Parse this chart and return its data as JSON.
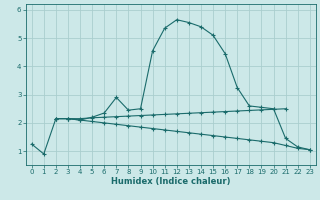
{
  "xlabel": "Humidex (Indice chaleur)",
  "background_color": "#cce8e8",
  "grid_color": "#aacece",
  "line_color": "#1a6b6b",
  "xlim": [
    -0.5,
    23.5
  ],
  "ylim": [
    0.5,
    6.2
  ],
  "xticks": [
    0,
    1,
    2,
    3,
    4,
    5,
    6,
    7,
    8,
    9,
    10,
    11,
    12,
    13,
    14,
    15,
    16,
    17,
    18,
    19,
    20,
    21,
    22,
    23
  ],
  "yticks": [
    1,
    2,
    3,
    4,
    5,
    6
  ],
  "curve1_x": [
    0,
    1,
    2,
    3,
    4,
    5,
    6,
    7,
    8,
    9,
    10,
    11,
    12,
    13,
    14,
    15,
    16,
    17,
    18,
    19,
    20,
    21,
    22,
    23
  ],
  "curve1_y": [
    1.25,
    0.9,
    2.15,
    2.15,
    2.1,
    2.2,
    2.35,
    2.9,
    2.45,
    2.5,
    4.55,
    5.35,
    5.65,
    5.55,
    5.4,
    5.1,
    4.45,
    3.25,
    2.6,
    2.55,
    2.5,
    1.45,
    1.15,
    1.05
  ],
  "curve2_x": [
    2,
    3,
    4,
    5,
    6,
    7,
    8,
    9,
    10,
    11,
    12,
    13,
    14,
    15,
    16,
    17,
    18,
    19,
    20,
    21
  ],
  "curve2_y": [
    2.15,
    2.15,
    2.15,
    2.18,
    2.2,
    2.22,
    2.24,
    2.26,
    2.28,
    2.3,
    2.32,
    2.34,
    2.36,
    2.38,
    2.4,
    2.42,
    2.44,
    2.46,
    2.48,
    2.5
  ],
  "curve3_x": [
    2,
    3,
    4,
    5,
    6,
    7,
    8,
    9,
    10,
    11,
    12,
    13,
    14,
    15,
    16,
    17,
    18,
    19,
    20,
    21,
    22,
    23
  ],
  "curve3_y": [
    2.15,
    2.15,
    2.1,
    2.05,
    2.0,
    1.95,
    1.9,
    1.85,
    1.8,
    1.75,
    1.7,
    1.65,
    1.6,
    1.55,
    1.5,
    1.45,
    1.4,
    1.35,
    1.3,
    1.2,
    1.1,
    1.05
  ]
}
